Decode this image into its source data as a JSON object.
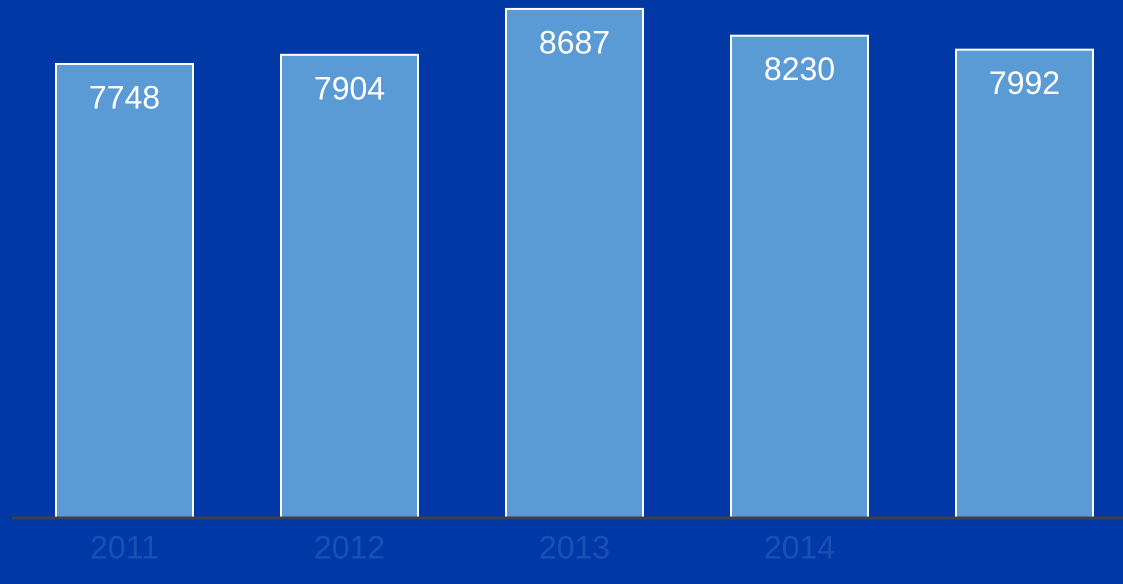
{
  "chart_data": {
    "type": "bar",
    "categories": [
      "2011",
      "2012",
      "2013",
      "2014",
      null
    ],
    "values": [
      7748,
      7904,
      8687,
      8230,
      7992
    ],
    "color": "#5b9bd5"
  }
}
